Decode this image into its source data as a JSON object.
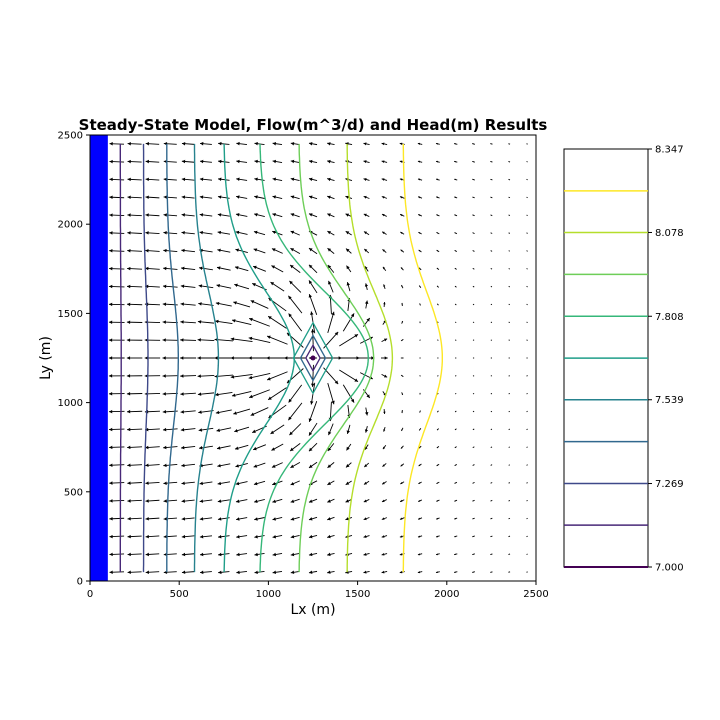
{
  "chart_data": {
    "type": "contour",
    "title": "Steady-State Model, Flow(m^3/d) and Head(m) Results",
    "xlabel": "Lx (m)",
    "ylabel": "Ly (m)",
    "xlim": [
      0,
      2500
    ],
    "ylim": [
      0,
      2500
    ],
    "xticks": [
      "0",
      "500",
      "1000",
      "1500",
      "2000",
      "2500"
    ],
    "yticks": [
      "0",
      "500",
      "1000",
      "1500",
      "2000",
      "2500"
    ],
    "grid": false,
    "constant_head_strip": {
      "x_range": [
        0,
        100
      ],
      "color": "#0000ff"
    },
    "well_location": {
      "x": 1250,
      "y": 1250
    },
    "contour_levels": [
      7.0,
      7.135,
      7.269,
      7.404,
      7.539,
      7.673,
      7.808,
      7.943,
      8.078,
      8.212,
      8.347
    ],
    "contour_colors": [
      "#440154",
      "#482878",
      "#3e4989",
      "#31688e",
      "#26828e",
      "#1f9e89",
      "#35b779",
      "#6ece58",
      "#b5de2b",
      "#fde725"
    ],
    "contour_lines": [
      {
        "level": 7.135,
        "color": "#482878",
        "far_x": 170,
        "center_x": 175
      },
      {
        "level": 7.269,
        "color": "#3e4989",
        "far_x": 300,
        "center_x": 325
      },
      {
        "level": 7.404,
        "color": "#31688e",
        "far_x": 430,
        "center_x": 495
      },
      {
        "level": 7.539,
        "color": "#26828e",
        "far_x": 585,
        "center_x": 720
      },
      {
        "level": 7.673,
        "color": "#1f9e89",
        "far_x": 750,
        "center_x": 1145
      },
      {
        "level": 7.808,
        "color": "#35b779",
        "far_x": 950,
        "center_x": 1560
      },
      {
        "level": 7.943,
        "color": "#6ece58",
        "far_x": 1170,
        "center_x": 1590
      },
      {
        "level": 8.078,
        "color": "#b5de2b",
        "far_x": 1440,
        "center_x": 1695
      },
      {
        "level": 8.212,
        "color": "#fde725",
        "far_x": 1755,
        "center_x": 1975
      }
    ],
    "colorbar": {
      "tick_labels": [
        "8.347",
        "8.078",
        "7.808",
        "7.539",
        "7.269",
        "7.000"
      ],
      "tick_values": [
        8.347,
        8.078,
        7.808,
        7.539,
        7.269,
        7.0
      ],
      "min": 7.0,
      "max": 8.347
    },
    "quiver_grid": {
      "spacing": 100,
      "x_start": 150,
      "x_end": 2450,
      "y_start": 50,
      "y_end": 2450
    }
  }
}
